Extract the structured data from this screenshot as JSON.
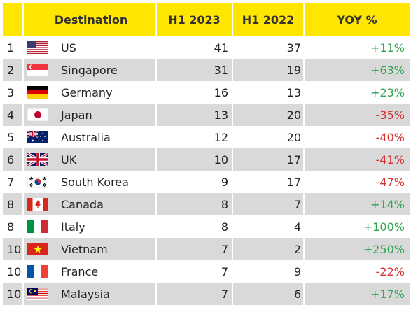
{
  "header": {
    "destination": "Destination",
    "h1_2023": "H1 2023",
    "h1_2022": "H1 2022",
    "yoy": "YOY %"
  },
  "rows": [
    {
      "rank": "1",
      "flag": "us-flag-icon",
      "name": "US",
      "h23": "41",
      "h22": "37",
      "yoy": "+11%"
    },
    {
      "rank": "2",
      "flag": "singapore-flag-icon",
      "name": "Singapore",
      "h23": "31",
      "h22": "19",
      "yoy": "+63%"
    },
    {
      "rank": "3",
      "flag": "germany-flag-icon",
      "name": "Germany",
      "h23": "16",
      "h22": "13",
      "yoy": "+23%"
    },
    {
      "rank": "4",
      "flag": "japan-flag-icon",
      "name": "Japan",
      "h23": "13",
      "h22": "20",
      "yoy": "-35%"
    },
    {
      "rank": "5",
      "flag": "australia-flag-icon",
      "name": "Australia",
      "h23": "12",
      "h22": "20",
      "yoy": "-40%"
    },
    {
      "rank": "6",
      "flag": "uk-flag-icon",
      "name": "UK",
      "h23": "10",
      "h22": "17",
      "yoy": "-41%"
    },
    {
      "rank": "7",
      "flag": "south-korea-flag-icon",
      "name": "South Korea",
      "h23": "9",
      "h22": "17",
      "yoy": "-47%"
    },
    {
      "rank": "8",
      "flag": "canada-flag-icon",
      "name": "Canada",
      "h23": "8",
      "h22": "7",
      "yoy": "+14%"
    },
    {
      "rank": "8",
      "flag": "italy-flag-icon",
      "name": "Italy",
      "h23": "8",
      "h22": "4",
      "yoy": "+100%"
    },
    {
      "rank": "10",
      "flag": "vietnam-flag-icon",
      "name": "Vietnam",
      "h23": "7",
      "h22": "2",
      "yoy": "+250%"
    },
    {
      "rank": "10",
      "flag": "france-flag-icon",
      "name": "France",
      "h23": "7",
      "h22": "9",
      "yoy": "-22%"
    },
    {
      "rank": "10",
      "flag": "malaysia-flag-icon",
      "name": "Malaysia",
      "h23": "7",
      "h22": "6",
      "yoy": "+17%"
    }
  ],
  "colors": {
    "header_bg": "#ffe600",
    "row_alt": "#d9d9d9",
    "positive": "#2ea44f",
    "negative": "#d92b2b"
  }
}
